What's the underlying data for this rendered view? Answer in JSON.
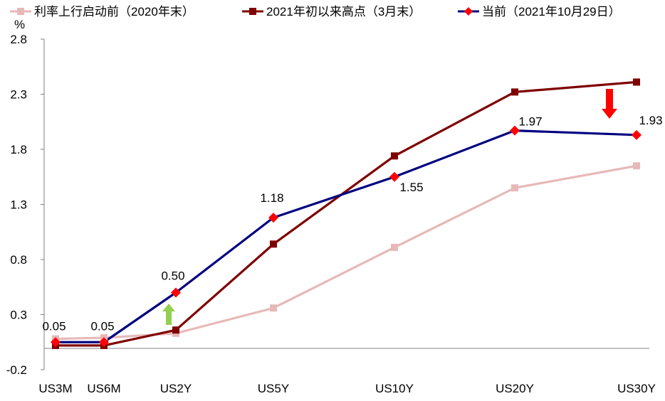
{
  "chart_data": {
    "type": "line",
    "ylabel": "%",
    "ylim": [
      -0.2,
      2.8
    ],
    "yticks": [
      "2.8",
      "2.3",
      "1.8",
      "1.3",
      "0.8",
      "0.3",
      "-0.2"
    ],
    "categories": [
      "US3M",
      "US6M",
      "US2Y",
      "US5Y",
      "US10Y",
      "US20Y",
      "US30Y"
    ],
    "x_positions_years": [
      0.25,
      0.5,
      2,
      5,
      10,
      20,
      30
    ],
    "legend_position": "top",
    "grid": false,
    "series": [
      {
        "name": "利率上行启动前（2020年末）",
        "color": "#e6b9b8",
        "marker": "square",
        "values": [
          0.08,
          0.09,
          0.13,
          0.36,
          0.91,
          1.45,
          1.65
        ]
      },
      {
        "name": "2021年初以来高点（3月末）",
        "color": "#7f0000",
        "marker": "square",
        "values": [
          0.02,
          0.02,
          0.16,
          0.94,
          1.74,
          2.32,
          2.41
        ]
      },
      {
        "name": "当前（2021年10月29日）",
        "color": "#000080",
        "marker": "diamond",
        "marker_color": "#ff0000",
        "values": [
          0.05,
          0.05,
          0.5,
          1.18,
          1.55,
          1.97,
          1.93
        ],
        "data_labels": [
          "0.05",
          "0.05",
          "0.50",
          "1.18",
          "1.55",
          "1.97",
          "1.93"
        ]
      }
    ],
    "annotations": [
      {
        "type": "arrow",
        "direction": "up",
        "color": "#92d050",
        "category": "US2Y"
      },
      {
        "type": "arrow",
        "direction": "down",
        "color": "#ff0000",
        "category": "US30Y"
      }
    ]
  }
}
